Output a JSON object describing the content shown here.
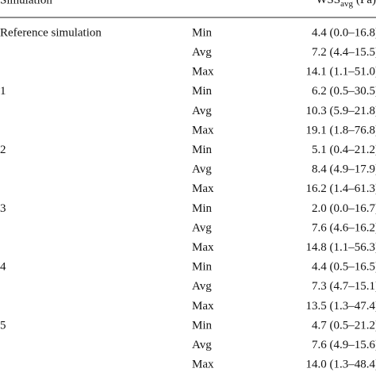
{
  "header": {
    "simulation": "Simulation",
    "wss": {
      "main": "WSS",
      "sub": "avg",
      "unit": "(Pa)"
    }
  },
  "groups": [
    {
      "name": "Reference simulation",
      "rows": [
        [
          "Min",
          "4.4 (0.0–16.8)"
        ],
        [
          "Avg",
          "7.2 (4.4–15.5)"
        ],
        [
          "Max",
          "14.1 (1.1–51.0)"
        ]
      ]
    },
    {
      "name": "1",
      "rows": [
        [
          "Min",
          "6.2 (0.5–30.5)"
        ],
        [
          "Avg",
          "10.3 (5.9–21.8)"
        ],
        [
          "Max",
          "19.1 (1.8–76.8)"
        ]
      ]
    },
    {
      "name": "2",
      "rows": [
        [
          "Min",
          "5.1 (0.4–21.2)"
        ],
        [
          "Avg",
          "8.4 (4.9–17.9)"
        ],
        [
          "Max",
          "16.2 (1.4–61.3)"
        ]
      ]
    },
    {
      "name": "3",
      "rows": [
        [
          "Min",
          "2.0 (0.0–16.7)"
        ],
        [
          "Avg",
          "7.6 (4.6–16.2)"
        ],
        [
          "Max",
          "14.8 (1.1–56.3)"
        ]
      ]
    },
    {
      "name": "4",
      "rows": [
        [
          "Min",
          "4.4 (0.5–16.5)"
        ],
        [
          "Avg",
          "7.3 (4.7–15.1)"
        ],
        [
          "Max",
          "13.5 (1.3–47.4)"
        ]
      ]
    },
    {
      "name": "5",
      "rows": [
        [
          "Min",
          "4.7 (0.5–21.2)"
        ],
        [
          "Avg",
          "7.6 (4.9–15.6)"
        ],
        [
          "Max",
          "14.0 (1.3–48.4)"
        ]
      ]
    }
  ]
}
